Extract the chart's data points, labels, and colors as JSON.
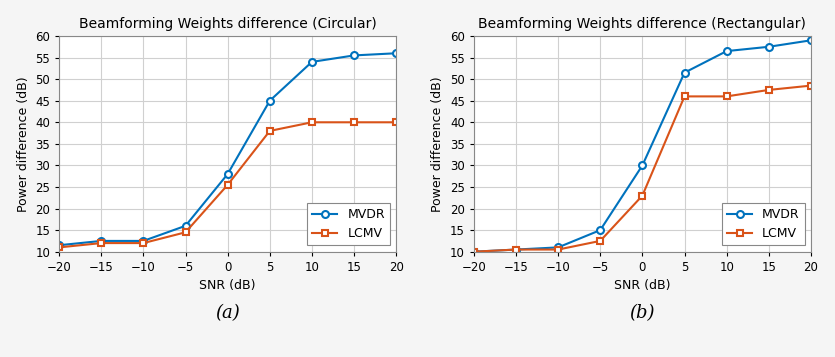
{
  "snr": [
    -20,
    -15,
    -10,
    -5,
    0,
    5,
    10,
    15,
    20
  ],
  "circular": {
    "title": "Beamforming Weights difference (Circular)",
    "mvdr": [
      11.5,
      12.5,
      12.5,
      16.0,
      28.0,
      45.0,
      54.0,
      55.5,
      56.0
    ],
    "lcmv": [
      11.0,
      12.0,
      12.0,
      14.5,
      25.5,
      38.0,
      40.0,
      40.0,
      40.0
    ]
  },
  "rectangular": {
    "title": "Beamforming Weights difference (Rectangular)",
    "mvdr": [
      10.0,
      10.5,
      11.0,
      15.0,
      30.0,
      51.5,
      56.5,
      57.5,
      59.0
    ],
    "lcmv": [
      10.0,
      10.5,
      10.5,
      12.5,
      23.0,
      46.0,
      46.0,
      47.5,
      48.5
    ]
  },
  "xlabel": "SNR (dB)",
  "ylabel": "Power difference (dB)",
  "ylim": [
    10,
    60
  ],
  "xlim": [
    -20,
    20
  ],
  "xticks": [
    -20,
    -15,
    -10,
    -5,
    0,
    5,
    10,
    15,
    20
  ],
  "yticks": [
    10,
    15,
    20,
    25,
    30,
    35,
    40,
    45,
    50,
    55,
    60
  ],
  "mvdr_color": "#0072BD",
  "lcmv_color": "#D95319",
  "label_a": "(a)",
  "label_b": "(b)",
  "legend_labels": [
    "MVDR",
    "LCMV"
  ],
  "title_fontsize": 10,
  "label_fontsize": 9,
  "tick_fontsize": 8.5,
  "legend_fontsize": 9,
  "subtitle_fontsize": 13,
  "figure_facecolor": "#f5f5f5",
  "axes_facecolor": "#ffffff",
  "grid_color": "#d0d0d0",
  "grid_linewidth": 0.8,
  "line_linewidth": 1.5,
  "marker_size": 5
}
